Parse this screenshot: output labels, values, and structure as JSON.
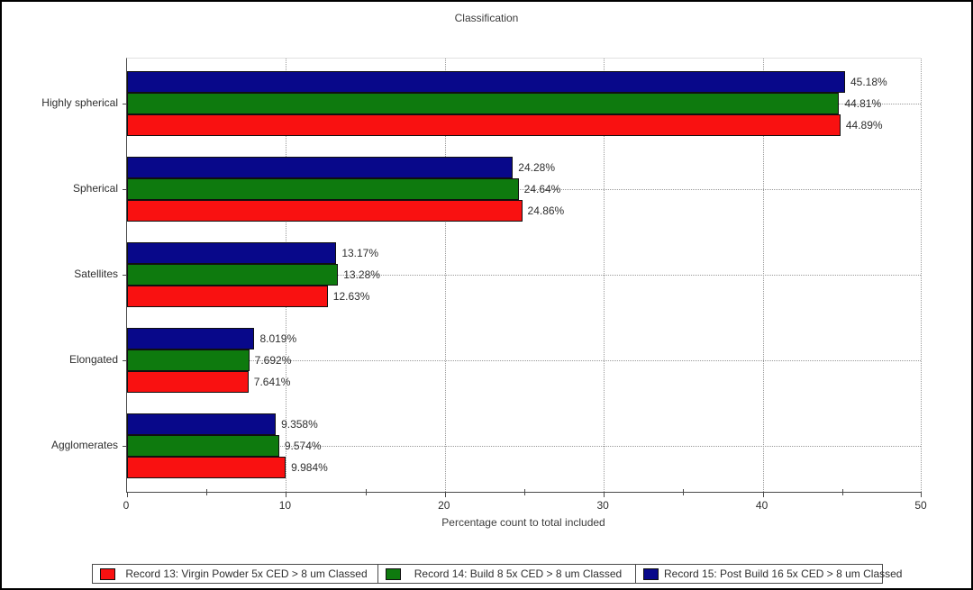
{
  "window": {
    "background": "#ffffff",
    "border_color": "#000000"
  },
  "chart_data": {
    "type": "bar",
    "orientation": "horizontal",
    "title": "Classification",
    "xlabel": "Percentage count to total included",
    "xlim": [
      0,
      50
    ],
    "xticks": [
      0,
      10,
      20,
      30,
      40,
      50
    ],
    "xtick_labels": [
      "0",
      "10",
      "20",
      "30",
      "40",
      "50"
    ],
    "minor_xticks": [
      5,
      15,
      25,
      35,
      45
    ],
    "grid": "dotted vertical gridlines at major x ticks, dotted horizontal gridlines at category centers",
    "legend_position": "bottom",
    "categories": [
      "Highly spherical",
      "Spherical",
      "Satellites",
      "Elongated",
      "Agglomerates"
    ],
    "series": [
      {
        "name": "Record 13: Virgin Powder 5x CED > 8 um Classed",
        "color": "#f91111",
        "values": [
          44.89,
          24.86,
          12.63,
          7.641,
          9.984
        ],
        "value_labels": [
          "44.89%",
          "24.86%",
          "12.63%",
          "7.641%",
          "9.984%"
        ]
      },
      {
        "name": "Record 14: Build 8 5x CED > 8 um Classed",
        "color": "#0e7a0e",
        "values": [
          44.81,
          24.64,
          13.28,
          7.692,
          9.574
        ],
        "value_labels": [
          "44.81%",
          "24.64%",
          "13.28%",
          "7.692%",
          "9.574%"
        ]
      },
      {
        "name": "Record 15: Post Build 16 5x CED > 8 um Classed",
        "color": "#08088a",
        "values": [
          45.18,
          24.28,
          13.17,
          8.019,
          9.358
        ],
        "value_labels": [
          "45.18%",
          "24.28%",
          "13.17%",
          "8.019%",
          "9.358%"
        ]
      }
    ],
    "bar_order_top_to_bottom_series_indices": [
      2,
      1,
      0
    ]
  }
}
